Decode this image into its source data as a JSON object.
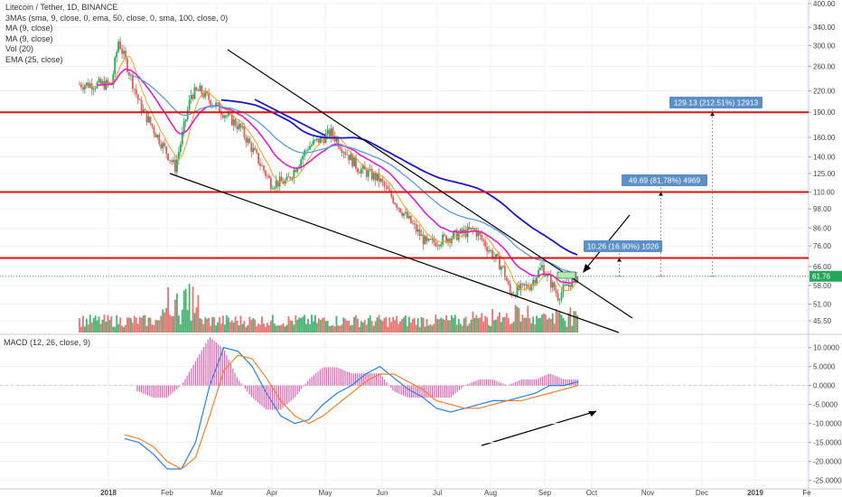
{
  "legend": {
    "title": "Litecoin / Tether, 1D, BINANCE",
    "line1": "3MAs (sma, 9, close, 0, ema, 50, close, 0, sma, 100, close, 0)",
    "line2": "MA (9, close)",
    "line3": "MA (9, close)",
    "line4": "Vol (20)",
    "line5": "EMA (25, close)"
  },
  "macd_legend": "MACD (12, 26, close, 9)",
  "colors": {
    "bull": "#26a65b",
    "bear": "#e35a5a",
    "ema25": "#e020c8",
    "sma100": "#1818c8",
    "ema50": "#5a9ad8",
    "ma9": "#f0a020",
    "resistance": "#e01010",
    "trend": "#000000",
    "macd": "#2a7fe0",
    "signal": "#f08030",
    "hist_pos": "#e060b0",
    "hist_neg": "#e060b0",
    "box": "#b8e6b8",
    "tag": "#5b8fc8"
  },
  "chart_data": [
    {
      "type": "candlestick",
      "title": "Litecoin / Tether, 1D, BINANCE",
      "y_scale": "log",
      "ylim": [
        42,
        400
      ],
      "y_ticks": [
        "400.00",
        "340.00",
        "300.00",
        "260.00",
        "220.00",
        "190.00",
        "160.00",
        "140.00",
        "125.00",
        "110.00",
        "98.00",
        "86.00",
        "76.00",
        "66.00",
        "58.00",
        "51.00",
        "45.50"
      ],
      "y_tick_values": [
        400,
        340,
        300,
        260,
        220,
        190,
        160,
        140,
        125,
        110,
        98,
        86,
        76,
        66,
        58,
        51,
        45.5
      ],
      "x_ticks": [
        "2018",
        "Feb",
        "Mar",
        "Apr",
        "May",
        "Jun",
        "Jul",
        "Aug",
        "Sep",
        "Oct",
        "Nov",
        "Dec",
        "2019",
        "Fe"
      ],
      "last_price": "61.76",
      "horizontal_levels": [
        190,
        110,
        70
      ],
      "closes_key_points": [
        {
          "x": "2018-01-01",
          "y": 230
        },
        {
          "x": "2018-01-05",
          "y": 310
        },
        {
          "x": "2018-01-10",
          "y": 260
        },
        {
          "x": "2018-01-17",
          "y": 200
        },
        {
          "x": "2018-02-06",
          "y": 130
        },
        {
          "x": "2018-02-15",
          "y": 215
        },
        {
          "x": "2018-02-20",
          "y": 220
        },
        {
          "x": "2018-03-15",
          "y": 170
        },
        {
          "x": "2018-04-01",
          "y": 117
        },
        {
          "x": "2018-04-10",
          "y": 118
        },
        {
          "x": "2018-04-22",
          "y": 150
        },
        {
          "x": "2018-05-05",
          "y": 165
        },
        {
          "x": "2018-05-20",
          "y": 130
        },
        {
          "x": "2018-06-01",
          "y": 120
        },
        {
          "x": "2018-06-15",
          "y": 95
        },
        {
          "x": "2018-06-28",
          "y": 77
        },
        {
          "x": "2018-07-15",
          "y": 82
        },
        {
          "x": "2018-07-25",
          "y": 85
        },
        {
          "x": "2018-08-10",
          "y": 65
        },
        {
          "x": "2018-08-14",
          "y": 55
        },
        {
          "x": "2018-08-25",
          "y": 58
        },
        {
          "x": "2018-09-01",
          "y": 66
        },
        {
          "x": "2018-09-10",
          "y": 54
        },
        {
          "x": "2018-09-20",
          "y": 61.76
        }
      ],
      "annotations": [
        {
          "text": "10.26 (16.90%) 1026"
        },
        {
          "text": "49.69 (81.78%) 4969"
        },
        {
          "text": "129.13 (212.51%) 12913"
        }
      ]
    },
    {
      "type": "line",
      "title": "MACD (12, 26, close, 9)",
      "ylim": [
        -27,
        13
      ],
      "y_ticks": [
        "10.0000",
        "5.0000",
        "0.0000",
        "-5.0000",
        "-10.0000",
        "-15.0000",
        "-20.0000",
        "-25.0000"
      ],
      "y_tick_values": [
        10,
        5,
        0,
        -5,
        -10,
        -15,
        -20,
        -25
      ],
      "series": [
        {
          "name": "MACD",
          "values": [
            -14,
            -15,
            -18,
            -22,
            -22,
            -15,
            0,
            10,
            9,
            5,
            -2,
            -8,
            -10,
            -9,
            -5,
            -2,
            0,
            3,
            5,
            2,
            -1,
            -3,
            -6,
            -7,
            -6,
            -5,
            -4,
            -4,
            -3,
            -2,
            0,
            0,
            1
          ]
        },
        {
          "name": "Signal",
          "values": [
            -13,
            -14,
            -16,
            -20,
            -22,
            -19,
            -8,
            4,
            8,
            7,
            2,
            -4,
            -8,
            -10,
            -8,
            -5,
            -2,
            1,
            3,
            3,
            1,
            -1,
            -4,
            -5,
            -6,
            -6,
            -5,
            -4,
            -4,
            -3,
            -2,
            -1,
            0
          ]
        }
      ]
    }
  ]
}
